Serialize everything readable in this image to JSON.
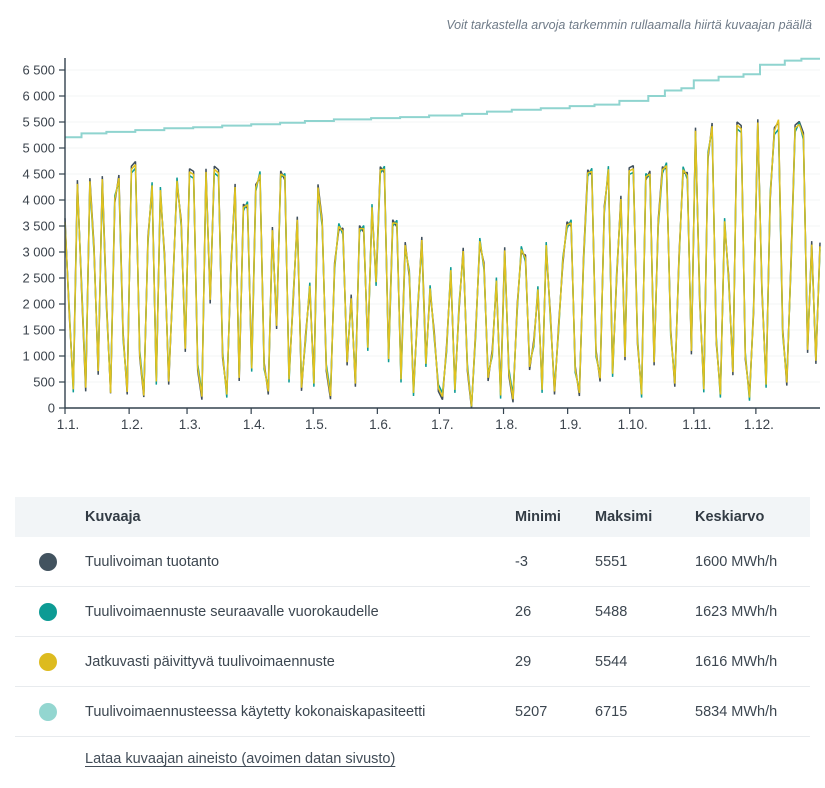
{
  "hint": "Voit tarkastella arvoja tarkemmin rullaamalla hiirtä kuvaajan päällä",
  "table": {
    "headers": [
      "Kuvaaja",
      "Minimi",
      "Maksimi",
      "Keskiarvo"
    ],
    "rows": [
      {
        "label": "Tuulivoiman tuotanto",
        "min": "-3",
        "max": "5551",
        "avg": "1600 MWh/h",
        "color": "#42535f"
      },
      {
        "label": "Tuulivoimaennuste seuraavalle vuorokaudelle",
        "min": "26",
        "max": "5488",
        "avg": "1623 MWh/h",
        "color": "#0d9b94"
      },
      {
        "label": "Jatkuvasti päivittyvä tuulivoimaennuste",
        "min": "29",
        "max": "5544",
        "avg": "1616 MWh/h",
        "color": "#ddbb1f"
      },
      {
        "label": "Tuulivoimaennusteessa käytetty kokonaiskapasiteetti",
        "min": "5207",
        "max": "6715",
        "avg": "5834 MWh/h",
        "color": "#93d6d0"
      }
    ],
    "download_link": "Lataa kuvaajan aineisto (avoimen datan sivusto)"
  },
  "chart_data": {
    "type": "line",
    "title": "",
    "ylabel": "MWh/h",
    "ylim": [
      0,
      6500
    ],
    "ytick_step": 500,
    "grid": true,
    "x_axis": {
      "labels": [
        "1.1.",
        "1.2.",
        "1.3.",
        "1.4.",
        "1.5.",
        "1.6.",
        "1.7.",
        "1.8.",
        "1.9.",
        "1.10.",
        "1.11.",
        "1.12."
      ],
      "month_start_days": [
        0,
        31,
        59,
        90,
        120,
        151,
        181,
        212,
        243,
        273,
        304,
        334
      ],
      "days_total": 365
    },
    "series": [
      {
        "name": "Tuulivoiman tuotanto",
        "color": "#3f4f5c",
        "min": -3,
        "max": 5551,
        "avg": 1600,
        "sample_interval_days": 2,
        "values": [
          3650,
          1850,
          430,
          4380,
          2250,
          320,
          4420,
          3120,
          640,
          4460,
          2050,
          280,
          3950,
          4480,
          1450,
          260,
          4650,
          4740,
          980,
          210,
          3310,
          4210,
          580,
          4120,
          2960,
          450,
          2420,
          4300,
          3620,
          1080,
          4600,
          4550,
          720,
          160,
          4600,
          2010,
          4650,
          4580,
          960,
          310,
          2620,
          4310,
          520,
          3920,
          3840,
          830,
          4300,
          4420,
          880,
          260,
          3480,
          1520,
          4560,
          4380,
          620,
          2040,
          3680,
          330,
          1420,
          2280,
          540,
          4300,
          3620,
          710,
          170,
          2790,
          3420,
          3460,
          820,
          2180,
          410,
          3510,
          3380,
          1230,
          3790,
          2480,
          4640,
          4520,
          1010,
          3620,
          3480,
          620,
          3190,
          2520,
          360,
          1790,
          3290,
          920,
          2230,
          1480,
          320,
          160,
          1210,
          2580,
          420,
          1890,
          3080,
          710,
          -3,
          1520,
          3140,
          2790,
          520,
          1130,
          2380,
          310,
          3090,
          620,
          110,
          1990,
          2980,
          2940,
          730,
          1310,
          2210,
          420,
          3060,
          1820,
          260,
          1630,
          2760,
          3580,
          3490,
          810,
          230,
          2890,
          4580,
          4480,
          1120,
          510,
          3880,
          4520,
          730,
          2490,
          4080,
          920,
          4620,
          4660,
          1230,
          330,
          4380,
          4560,
          820,
          3610,
          4640,
          4590,
          1520,
          410,
          2930,
          4510,
          4530,
          1030,
          5390,
          2040,
          430,
          4790,
          5480,
          1240,
          330,
          3520,
          2540,
          630,
          5500,
          5430,
          940,
          270,
          1830,
          5551,
          2230,
          520,
          4010,
          5390,
          5490,
          1530,
          430,
          2830,
          5440,
          5510,
          5290,
          1060,
          3210,
          850,
          3180
        ]
      },
      {
        "name": "Tuulivoimaennuste seuraavalle vuorokaudelle",
        "color": "#0d9b94",
        "min": 26,
        "max": 5488,
        "avg": 1623,
        "sample_interval_days": 2,
        "values": [
          3520,
          1980,
          300,
          4250,
          2390,
          460,
          4300,
          2990,
          780,
          4330,
          1920,
          350,
          4080,
          4350,
          1320,
          390,
          4520,
          4610,
          1110,
          300,
          3180,
          4340,
          450,
          4250,
          2830,
          580,
          2290,
          4430,
          3490,
          1210,
          4470,
          4420,
          850,
          280,
          4470,
          2140,
          4520,
          4450,
          1090,
          200,
          2750,
          4180,
          650,
          3790,
          3970,
          700,
          4170,
          4550,
          750,
          390,
          3350,
          1650,
          4430,
          4510,
          490,
          2170,
          3550,
          460,
          1290,
          2410,
          410,
          4170,
          3490,
          840,
          300,
          2660,
          3550,
          3330,
          950,
          2050,
          540,
          3380,
          3510,
          1100,
          3920,
          2350,
          4510,
          4650,
          880,
          3490,
          3610,
          490,
          3060,
          2650,
          230,
          1920,
          3160,
          790,
          2360,
          1350,
          450,
          290,
          1080,
          2710,
          290,
          2020,
          2950,
          840,
          26,
          1390,
          3270,
          2660,
          650,
          1000,
          2510,
          180,
          2960,
          750,
          240,
          1860,
          3110,
          2810,
          860,
          1180,
          2340,
          290,
          3190,
          1690,
          390,
          1500,
          2890,
          3450,
          3620,
          680,
          360,
          2760,
          4450,
          4610,
          990,
          640,
          3750,
          4650,
          600,
          2620,
          3950,
          1050,
          4490,
          4530,
          1360,
          200,
          4510,
          4430,
          950,
          3480,
          4510,
          4720,
          1390,
          540,
          2800,
          4640,
          4400,
          1160,
          5260,
          2170,
          300,
          4920,
          5350,
          1370,
          200,
          3650,
          2410,
          760,
          5370,
          5300,
          1070,
          140,
          1960,
          5420,
          2360,
          390,
          4140,
          5260,
          5360,
          1400,
          560,
          2700,
          5310,
          5488,
          5160,
          1190,
          3080,
          980,
          3050
        ]
      },
      {
        "name": "Jatkuvasti päivittyvä tuulivoimaennuste",
        "color": "#e0c21f",
        "min": 29,
        "max": 5544,
        "avg": 1616,
        "sample_interval_days": 2,
        "values": [
          3580,
          1910,
          360,
          4310,
          2310,
          390,
          4360,
          3060,
          710,
          4400,
          1990,
          290,
          4020,
          4420,
          1390,
          310,
          4590,
          4680,
          1040,
          240,
          3250,
          4280,
          510,
          4190,
          2900,
          510,
          2360,
          4370,
          3560,
          1140,
          4540,
          4490,
          780,
          220,
          4540,
          2080,
          4590,
          4520,
          1020,
          260,
          2690,
          4250,
          580,
          3860,
          3910,
          760,
          4240,
          4490,
          810,
          320,
          3420,
          1580,
          4500,
          4450,
          550,
          2110,
          3620,
          390,
          1360,
          2350,
          470,
          4240,
          3560,
          770,
          230,
          2730,
          3490,
          3400,
          880,
          2110,
          470,
          3450,
          3450,
          1160,
          3860,
          2420,
          4580,
          4590,
          940,
          3560,
          3550,
          550,
          3130,
          2590,
          290,
          1860,
          3230,
          850,
          2300,
          1410,
          380,
          220,
          1150,
          2650,
          350,
          1960,
          3020,
          770,
          29,
          1460,
          3210,
          2730,
          580,
          1060,
          2450,
          240,
          3030,
          680,
          170,
          1930,
          3050,
          2880,
          790,
          1240,
          2280,
          350,
          3130,
          1760,
          320,
          1560,
          2830,
          3520,
          3560,
          740,
          290,
          2830,
          4520,
          4550,
          1050,
          570,
          3820,
          4590,
          660,
          2560,
          4020,
          980,
          4560,
          4600,
          1290,
          260,
          4450,
          4500,
          880,
          3550,
          4580,
          4660,
          1450,
          470,
          2870,
          4580,
          4470,
          1100,
          5330,
          2100,
          360,
          4860,
          5420,
          1300,
          260,
          3590,
          2470,
          690,
          5440,
          5370,
          1000,
          200,
          1890,
          5490,
          2290,
          450,
          4080,
          5330,
          5544,
          1460,
          490,
          2760,
          5380,
          5450,
          5230,
          1120,
          3140,
          910,
          3110
        ]
      },
      {
        "name": "Tuulivoimaennusteessa käytetty kokonaiskapasiteetti",
        "color": "#8fd4cf",
        "min": 5207,
        "max": 6715,
        "avg": 5834,
        "style": "step",
        "points": [
          [
            0,
            5207
          ],
          [
            8,
            5280
          ],
          [
            20,
            5310
          ],
          [
            34,
            5345
          ],
          [
            48,
            5380
          ],
          [
            62,
            5400
          ],
          [
            76,
            5430
          ],
          [
            90,
            5455
          ],
          [
            104,
            5485
          ],
          [
            116,
            5520
          ],
          [
            130,
            5550
          ],
          [
            148,
            5575
          ],
          [
            162,
            5595
          ],
          [
            176,
            5625
          ],
          [
            192,
            5655
          ],
          [
            204,
            5700
          ],
          [
            216,
            5735
          ],
          [
            230,
            5765
          ],
          [
            244,
            5805
          ],
          [
            256,
            5835
          ],
          [
            268,
            5905
          ],
          [
            282,
            6000
          ],
          [
            290,
            6105
          ],
          [
            298,
            6150
          ],
          [
            304,
            6300
          ],
          [
            316,
            6370
          ],
          [
            328,
            6420
          ],
          [
            336,
            6600
          ],
          [
            348,
            6680
          ],
          [
            356,
            6715
          ],
          [
            365,
            6715
          ]
        ]
      }
    ]
  }
}
